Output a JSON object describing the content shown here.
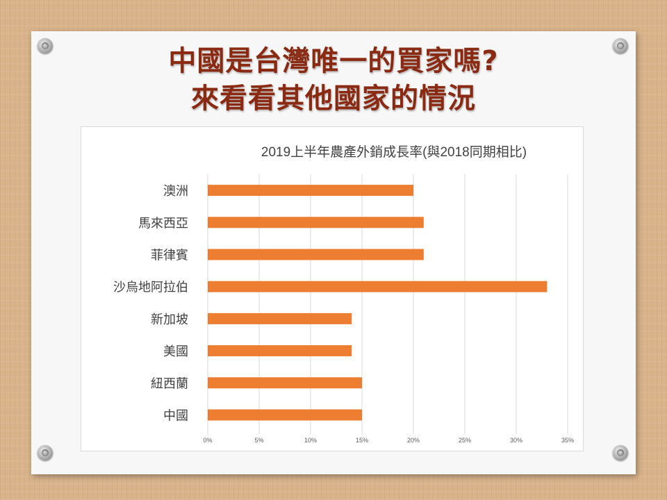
{
  "slide": {
    "title_line1": "中國是台灣唯一的買家嗎?",
    "title_line2": "來看看其他國家的情況"
  },
  "colors": {
    "bar": "#ed7d31",
    "title": "#8b2a12",
    "background": "#d9b48b"
  },
  "chart_data": {
    "type": "bar",
    "orientation": "horizontal",
    "title": "2019上半年農產外銷成長率(與2018同期相比)",
    "categories": [
      "澳洲",
      "馬來西亞",
      "菲律賓",
      "沙烏地阿拉伯",
      "新加坡",
      "美國",
      "紐西蘭",
      "中國"
    ],
    "values": [
      0.2,
      0.21,
      0.21,
      0.33,
      0.14,
      0.14,
      0.15,
      0.15
    ],
    "xlim": [
      0,
      0.35
    ],
    "xticks": [
      "0%",
      "5%",
      "10%",
      "15%",
      "20%",
      "25%",
      "30%",
      "35%"
    ],
    "grid": true,
    "legend": "none"
  }
}
